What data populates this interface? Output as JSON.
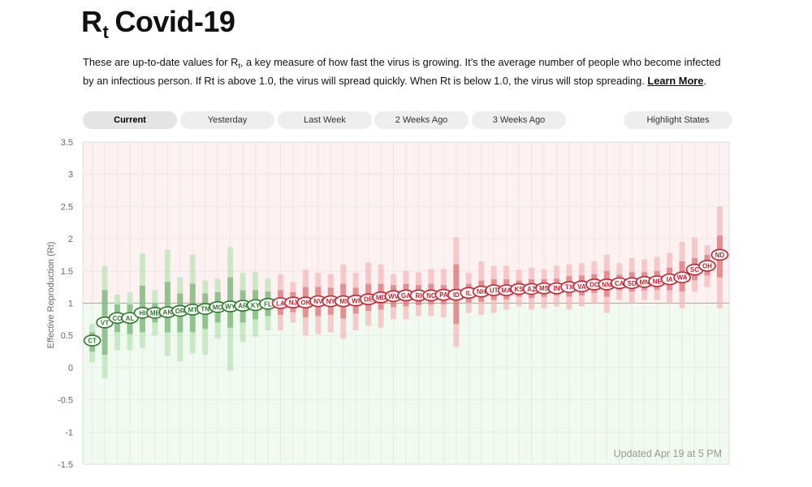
{
  "header": {
    "title_r": "R",
    "title_t": "t",
    "title_rest": "Covid-19",
    "intro_1": "These are up-to-date values for R",
    "intro_sub": "t",
    "intro_2": ", a key measure of how fast the virus is growing. It’s the average number of people who become infected by an infectious person. If Rt is above 1.0, the virus will spread quickly. When Rt is below 1.0, the virus will stop spreading.",
    "learn_more": "Learn More",
    "period": "."
  },
  "tabs": {
    "current": "Current",
    "yesterday": "Yesterday",
    "last_week": "Last Week",
    "two_weeks": "2 Weeks Ago",
    "three_weeks": "3 Weeks Ago",
    "highlight": "Highlight States"
  },
  "colors": {
    "above": "#c0242c",
    "below": "#2a7a2a",
    "above_band": "#f5b8bb",
    "below_band": "#b9e3b5",
    "above_bg": "#fdf1f1",
    "below_bg": "#f1faf0",
    "threshold_line": "#e88e92"
  },
  "chart_data": {
    "type": "scatter",
    "ylabel": "Effective Reproduction (Rt)",
    "ylim": [
      -1.5,
      3.5
    ],
    "yticks": [
      "3.5",
      "3",
      "2.5",
      "2",
      "1.5",
      "1",
      "0.5",
      "0",
      "-0.5",
      "-1",
      "-1.5"
    ],
    "threshold": 1,
    "updated": "Updated Apr 19 at 5 PM",
    "states": [
      "CT",
      "VT",
      "CO",
      "AL",
      "HI",
      "ME",
      "AK",
      "OR",
      "MT",
      "TN",
      "MO",
      "WY",
      "AR",
      "KY",
      "FL",
      "LA",
      "NJ",
      "OK",
      "NV",
      "NY",
      "MI",
      "WI",
      "DE",
      "MD",
      "WV",
      "GA",
      "RI",
      "NC",
      "PA",
      "ID",
      "IL",
      "NH",
      "UT",
      "MA",
      "KS",
      "AZ",
      "MS",
      "IN",
      "TX",
      "VA",
      "DC",
      "NM",
      "CA",
      "SD",
      "MN",
      "NE",
      "IA",
      "WA",
      "SC",
      "OH",
      "ND"
    ],
    "rt": [
      0.42,
      0.7,
      0.77,
      0.77,
      0.85,
      0.85,
      0.86,
      0.88,
      0.9,
      0.91,
      0.94,
      0.95,
      0.96,
      0.97,
      0.99,
      1.0,
      1.01,
      1.01,
      1.03,
      1.03,
      1.03,
      1.04,
      1.06,
      1.09,
      1.11,
      1.12,
      1.12,
      1.12,
      1.13,
      1.13,
      1.16,
      1.18,
      1.2,
      1.2,
      1.22,
      1.22,
      1.23,
      1.23,
      1.25,
      1.26,
      1.29,
      1.29,
      1.31,
      1.31,
      1.33,
      1.34,
      1.37,
      1.4,
      1.52,
      1.58,
      1.75
    ],
    "lo90": [
      0.08,
      -0.17,
      0.27,
      0.27,
      0.3,
      0.5,
      0.18,
      0.1,
      0.22,
      0.2,
      0.45,
      -0.05,
      0.4,
      0.48,
      0.58,
      0.58,
      0.7,
      0.5,
      0.52,
      0.55,
      0.45,
      0.58,
      0.65,
      0.62,
      0.75,
      0.75,
      0.8,
      0.8,
      0.78,
      0.32,
      0.85,
      0.82,
      0.85,
      0.9,
      0.95,
      0.9,
      0.92,
      0.95,
      0.9,
      0.95,
      1.0,
      0.85,
      1.05,
      1.0,
      1.05,
      1.05,
      1.0,
      0.92,
      1.18,
      1.25,
      0.92
    ],
    "hi90": [
      0.68,
      1.58,
      1.13,
      1.17,
      1.77,
      1.2,
      1.83,
      1.4,
      1.75,
      1.35,
      1.38,
      1.87,
      1.47,
      1.48,
      1.38,
      1.45,
      1.33,
      1.52,
      1.47,
      1.45,
      1.6,
      1.47,
      1.63,
      1.6,
      1.45,
      1.5,
      1.48,
      1.53,
      1.53,
      2.02,
      1.47,
      1.65,
      1.58,
      1.58,
      1.52,
      1.55,
      1.53,
      1.58,
      1.6,
      1.62,
      1.65,
      1.75,
      1.62,
      1.7,
      1.68,
      1.72,
      1.78,
      1.95,
      2.02,
      1.9,
      2.5
    ],
    "lo50": [
      0.25,
      0.2,
      0.55,
      0.52,
      0.55,
      0.7,
      0.55,
      0.55,
      0.55,
      0.6,
      0.7,
      0.62,
      0.7,
      0.75,
      0.8,
      0.82,
      0.86,
      0.78,
      0.8,
      0.82,
      0.76,
      0.84,
      0.88,
      0.9,
      0.94,
      0.95,
      0.97,
      0.98,
      0.98,
      0.68,
      1.01,
      1.02,
      1.05,
      1.06,
      1.1,
      1.08,
      1.1,
      1.12,
      1.1,
      1.12,
      1.16,
      1.1,
      1.2,
      1.18,
      1.2,
      1.21,
      1.2,
      1.18,
      1.36,
      1.43,
      1.4
    ],
    "hi50": [
      0.55,
      1.2,
      0.98,
      0.98,
      1.27,
      1.0,
      1.33,
      1.15,
      1.3,
      1.15,
      1.17,
      1.4,
      1.2,
      1.2,
      1.18,
      1.2,
      1.17,
      1.25,
      1.25,
      1.24,
      1.3,
      1.24,
      1.3,
      1.3,
      1.28,
      1.3,
      1.28,
      1.3,
      1.28,
      1.6,
      1.3,
      1.35,
      1.37,
      1.37,
      1.35,
      1.37,
      1.37,
      1.38,
      1.42,
      1.43,
      1.45,
      1.5,
      1.44,
      1.48,
      1.48,
      1.5,
      1.55,
      1.65,
      1.7,
      1.75,
      2.05
    ]
  }
}
